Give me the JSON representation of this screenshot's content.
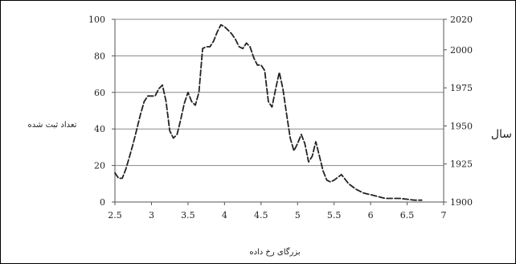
{
  "chart_data": {
    "type": "line",
    "title": "",
    "xlabel": "بزرگای رخ داده",
    "ylabel": "تعداد ثبت شده",
    "y2label": "سال",
    "grid": true,
    "xlim": [
      2.5,
      7
    ],
    "ylim": [
      0,
      100
    ],
    "y2lim": [
      1900,
      2020
    ],
    "x_ticks": [
      "2.5",
      "3",
      "3.5",
      "4",
      "4.5",
      "5",
      "5.5",
      "6",
      "6.5",
      "7"
    ],
    "y_ticks": [
      "0",
      "20",
      "40",
      "60",
      "80",
      "100"
    ],
    "y2_ticks": [
      "1900",
      "1925",
      "1950",
      "1975",
      "2000",
      "2020"
    ],
    "series": [
      {
        "style": "dashed",
        "color": "#222222",
        "x": [
          2.5,
          2.55,
          2.6,
          2.65,
          2.7,
          2.75,
          2.8,
          2.85,
          2.9,
          2.95,
          3.0,
          3.05,
          3.1,
          3.15,
          3.2,
          3.25,
          3.3,
          3.35,
          3.4,
          3.45,
          3.5,
          3.55,
          3.6,
          3.65,
          3.7,
          3.75,
          3.8,
          3.85,
          3.9,
          3.95,
          4.0,
          4.05,
          4.1,
          4.15,
          4.2,
          4.25,
          4.3,
          4.35,
          4.4,
          4.45,
          4.5,
          4.55,
          4.6,
          4.65,
          4.7,
          4.75,
          4.8,
          4.85,
          4.9,
          4.95,
          5.0,
          5.05,
          5.1,
          5.15,
          5.2,
          5.25,
          5.3,
          5.35,
          5.4,
          5.45,
          5.5,
          5.6,
          5.7,
          5.8,
          5.9,
          6.0,
          6.2,
          6.4,
          6.6,
          6.7
        ],
        "y": [
          16,
          13,
          13,
          18,
          25,
          32,
          40,
          48,
          55,
          58,
          58,
          58,
          62,
          64,
          55,
          39,
          35,
          37,
          45,
          54,
          60,
          55,
          53,
          60,
          84,
          85,
          85,
          88,
          93,
          97,
          96,
          94,
          92,
          89,
          85,
          84,
          87,
          85,
          79,
          75,
          75,
          72,
          55,
          52,
          62,
          71,
          62,
          48,
          35,
          28,
          32,
          37,
          32,
          22,
          25,
          33,
          25,
          17,
          12,
          11,
          12,
          15,
          10,
          7,
          5,
          4,
          2,
          2,
          1,
          1
        ]
      }
    ]
  }
}
